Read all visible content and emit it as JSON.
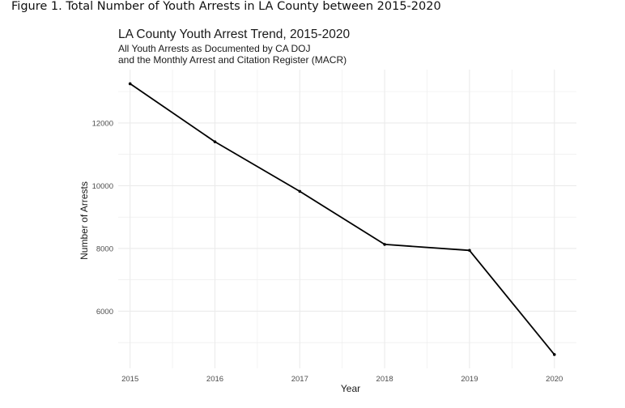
{
  "figure_caption": "Figure 1. Total Number of Youth Arrests in LA County between 2015-2020",
  "chart_data": {
    "type": "line",
    "title": "LA County Youth Arrest Trend, 2015-2020",
    "subtitle": [
      "All Youth Arrests as Documented by CA DOJ",
      "and the Monthly Arrest and Citation Register (MACR)"
    ],
    "xlabel": "Year",
    "ylabel": "Number of Arrests",
    "x": [
      2015,
      2016,
      2017,
      2018,
      2019,
      2020
    ],
    "values": [
      13250,
      11400,
      9820,
      8130,
      7940,
      4620
    ],
    "x_ticks": [
      "2015",
      "2016",
      "2017",
      "2018",
      "2019",
      "2020"
    ],
    "y_ticks": [
      6000,
      8000,
      10000,
      12000
    ],
    "y_tick_labels": [
      "6000",
      "8000",
      "10000",
      "12000"
    ],
    "ylim": [
      4180,
      13700
    ],
    "xlim": [
      2014.86,
      2020.26
    ],
    "grid": true,
    "line_color": "#000000",
    "grid_color": "#ebebeb",
    "legend": "none"
  }
}
